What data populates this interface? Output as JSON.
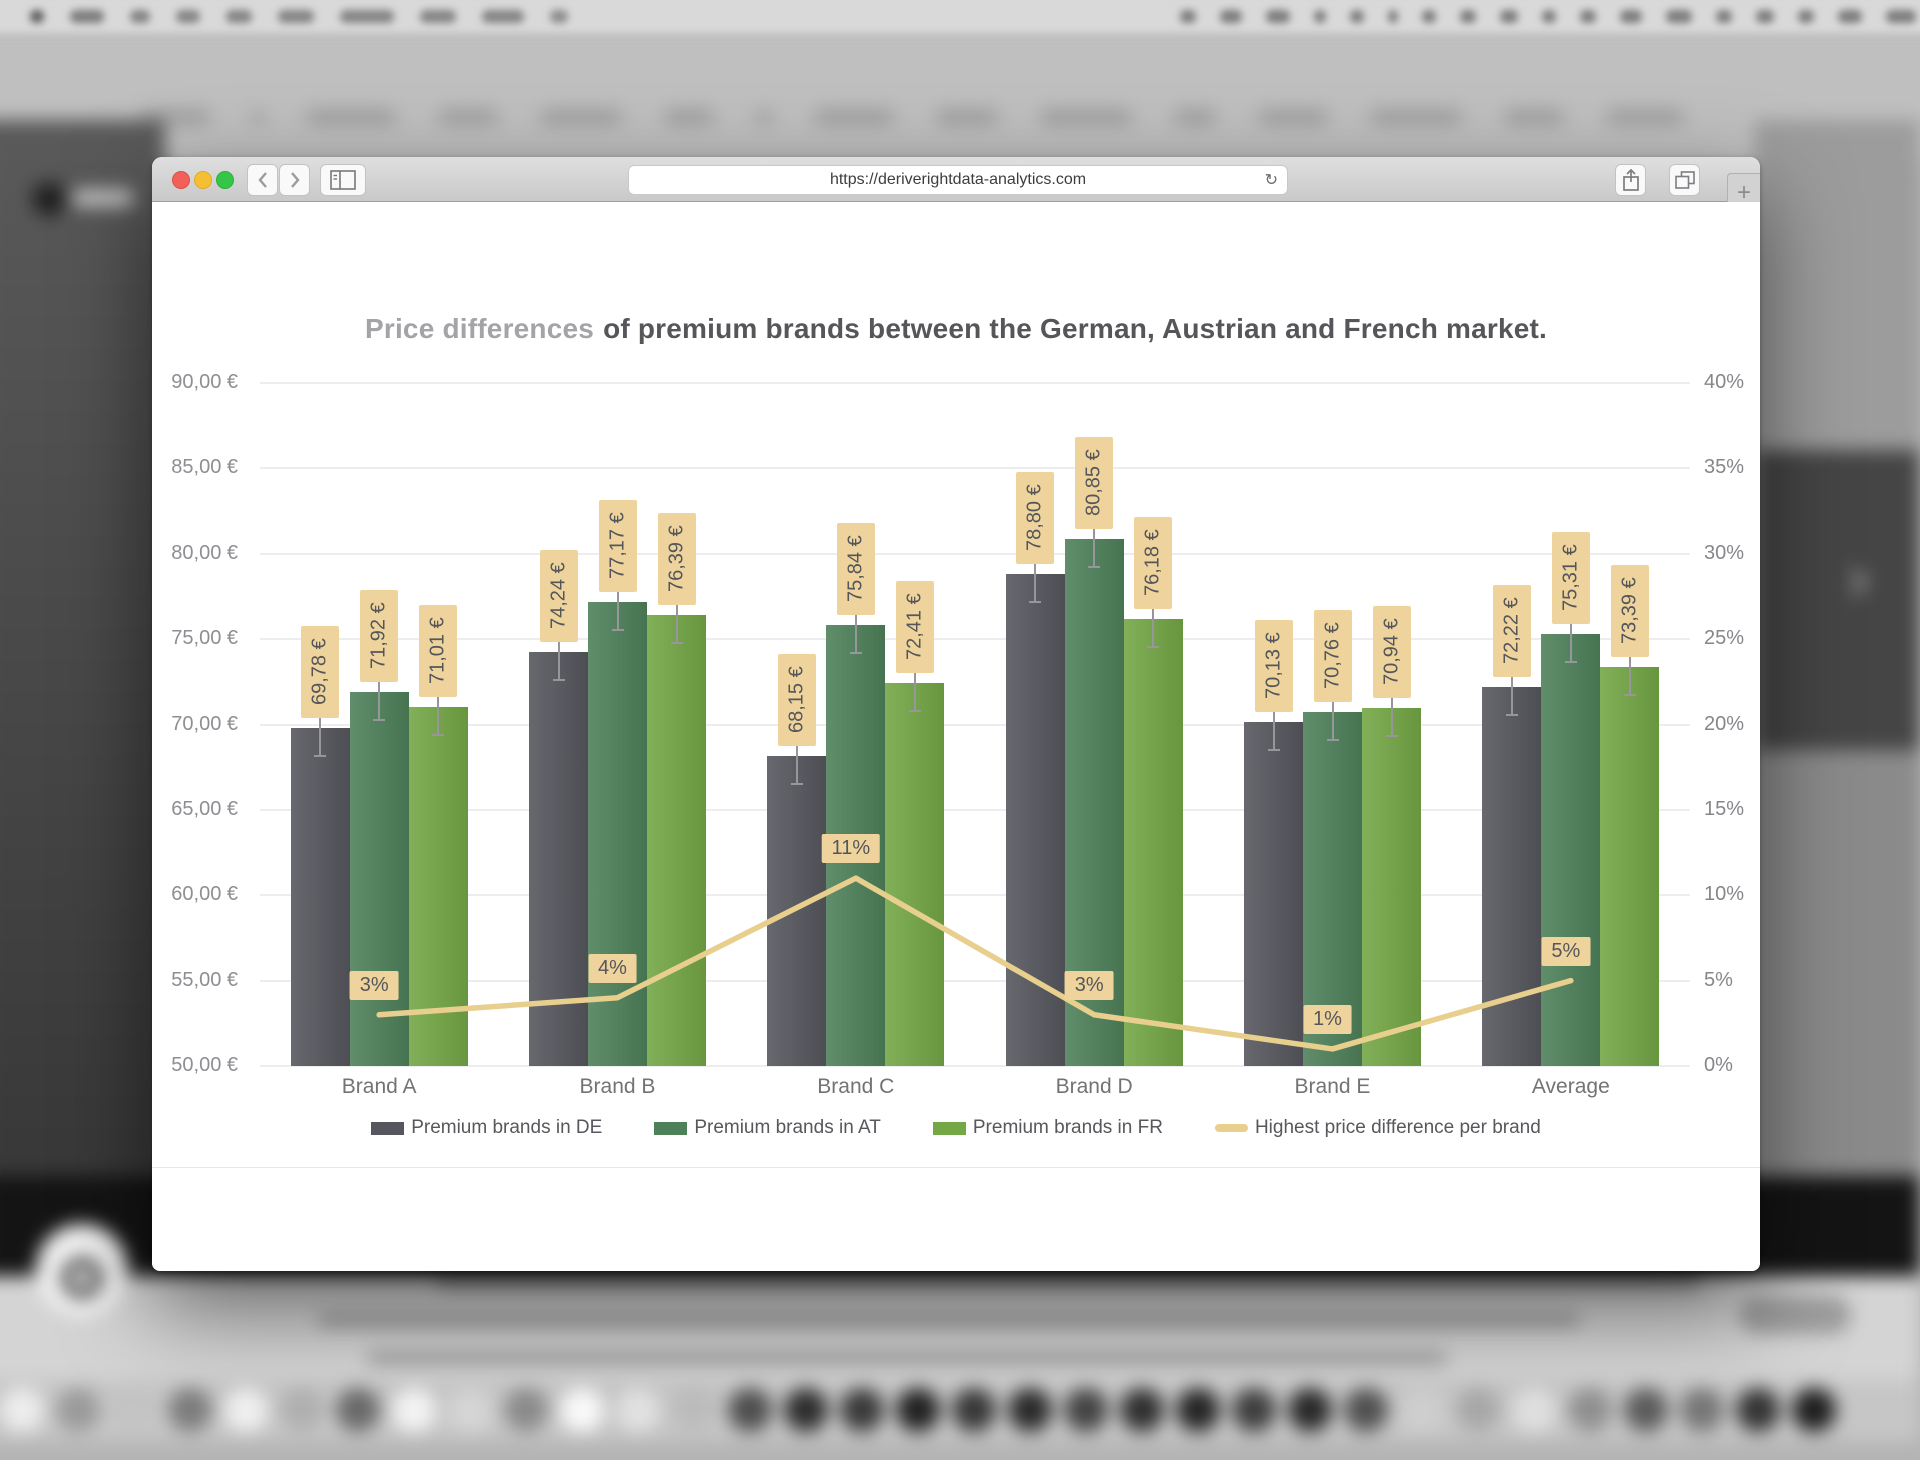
{
  "browser": {
    "url": "https://deriverightdata-analytics.com",
    "new_tab_label": "+",
    "traffic_light_colors": {
      "close": "#f2605a",
      "minimize": "#f5bf34",
      "maximize": "#35c648"
    }
  },
  "chart_data": {
    "type": "bar",
    "title": {
      "light": "Price differences",
      "bold": "of premium brands between the German, Austrian and French market."
    },
    "categories": [
      "Brand A",
      "Brand B",
      "Brand C",
      "Brand D",
      "Brand E",
      "Average"
    ],
    "series": [
      {
        "name": "Premium brands in DE",
        "color": "#56575e",
        "values": [
          69.78,
          74.24,
          68.15,
          78.8,
          70.13,
          72.22
        ],
        "labels": [
          "69,78 €",
          "74,24 €",
          "68,15 €",
          "78,80 €",
          "70,13 €",
          "72,22 €"
        ]
      },
      {
        "name": "Premium brands in AT",
        "color": "#4e815a",
        "values": [
          71.92,
          77.17,
          75.84,
          80.85,
          70.76,
          75.31
        ],
        "labels": [
          "71,92 €",
          "77,17 €",
          "75,84 €",
          "80,85 €",
          "70,76 €",
          "75,31 €"
        ]
      },
      {
        "name": "Premium brands in FR",
        "color": "#74a746",
        "values": [
          71.01,
          76.39,
          72.41,
          76.18,
          70.94,
          73.39
        ],
        "labels": [
          "71,01 €",
          "76,39 €",
          "72,41 €",
          "76,18 €",
          "70,94 €",
          "73,39 €"
        ]
      }
    ],
    "line_series": {
      "name": "Highest price difference per brand",
      "color": "#e9cf8d",
      "values": [
        3,
        4,
        11,
        3,
        1,
        5
      ],
      "labels": [
        "3%",
        "4%",
        "11%",
        "3%",
        "1%",
        "5%"
      ]
    },
    "y_left": {
      "ticks": [
        "90,00 €",
        "85,00 €",
        "80,00 €",
        "75,00 €",
        "70,00 €",
        "65,00 €",
        "60,00 €",
        "55,00 €",
        "50,00 €"
      ],
      "min": 50,
      "max": 90
    },
    "y_right": {
      "ticks": [
        "40%",
        "35%",
        "30%",
        "25%",
        "20%",
        "15%",
        "10%",
        "5%",
        "0%"
      ],
      "min": 0,
      "max": 40
    },
    "label_box_color": "#eed49c",
    "label_text_color": "#55565a",
    "grid": true,
    "legend_position": "bottom"
  }
}
